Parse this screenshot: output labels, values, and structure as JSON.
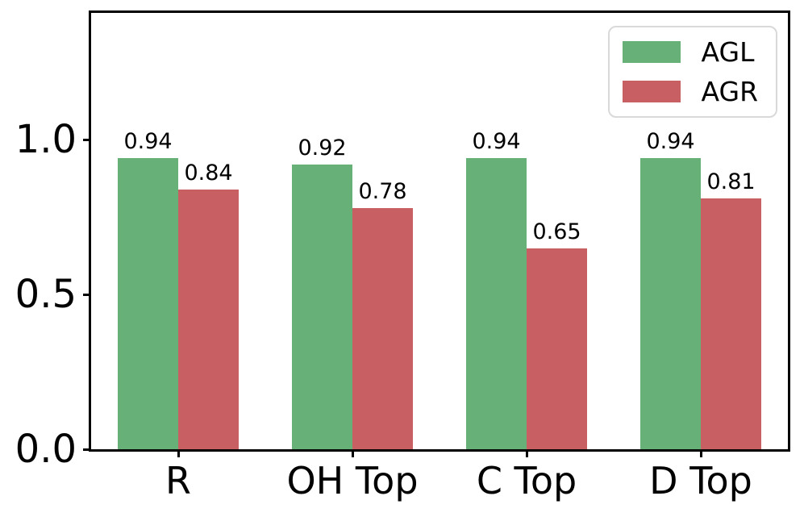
{
  "chart_data": {
    "type": "bar",
    "title": "",
    "xlabel": "",
    "ylabel": "",
    "categories": [
      "R",
      "OH Top",
      "C Top",
      "D Top"
    ],
    "series": [
      {
        "name": "AGL",
        "color": "#67b178",
        "values": [
          0.94,
          0.92,
          0.94,
          0.94
        ]
      },
      {
        "name": "AGR",
        "color": "#c75f63",
        "values": [
          0.84,
          0.78,
          0.65,
          0.81
        ]
      }
    ],
    "value_labels": {
      "AGL": [
        "0.94",
        "0.92",
        "0.94",
        "0.94"
      ],
      "AGR": [
        "0.84",
        "0.78",
        "0.65",
        "0.81"
      ]
    },
    "yticks": [
      {
        "value": 0.0,
        "label": "0.0"
      },
      {
        "value": 0.5,
        "label": "0.5"
      },
      {
        "value": 1.0,
        "label": "1.0"
      }
    ],
    "ylim": [
      0,
      1.41
    ],
    "grid": false,
    "legend": {
      "position": "upper right",
      "entries": [
        "AGL",
        "AGR"
      ]
    }
  }
}
